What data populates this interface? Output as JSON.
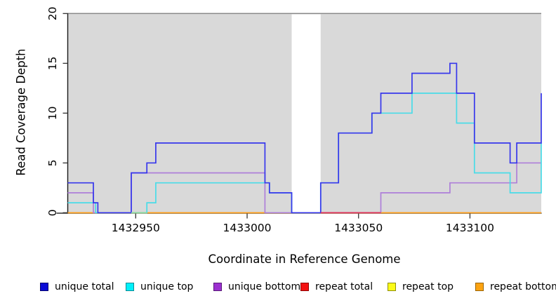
{
  "figure": {
    "bg": "#ffffff",
    "plot_bg": "#d9d9d9",
    "mask_fill": "#ffffff",
    "top_border_color": "#8a8a8a",
    "axis_color": "#1a1a1a",
    "tick_color": "#333333",
    "text_color": "#000000"
  },
  "chart_data": {
    "type": "line",
    "subtype": "step-coverage",
    "title": "",
    "xlabel": "Coordinate in Reference Genome",
    "ylabel": "Read Coverage Depth",
    "xlim": [
      1432919.5,
      1433132
    ],
    "ylim": [
      0,
      20
    ],
    "grid": "off",
    "legend_position": "bottom",
    "xticks": [
      {
        "label": "1432950",
        "value": 1432950
      },
      {
        "label": "1433000",
        "value": 1433000
      },
      {
        "label": "1433050",
        "value": 1433050
      },
      {
        "label": "1433100",
        "value": 1433100
      }
    ],
    "yticks": [
      {
        "label": "0",
        "value": 0
      },
      {
        "label": "5",
        "value": 5
      },
      {
        "label": "10",
        "value": 10
      },
      {
        "label": "15",
        "value": 15
      },
      {
        "label": "20",
        "value": 20
      }
    ],
    "masked_region": {
      "from": 1433020,
      "to": 1433033
    },
    "series": [
      {
        "name": "unique-total",
        "legend_label": "unique total",
        "line_color": "#3737ec",
        "legend_fill": "#0b0bd6",
        "legend_border": "#06066e",
        "draw_order": 5,
        "segments": [
          [
            [
              1432919.5,
              3
            ],
            [
              1432931,
              3
            ],
            [
              1432931,
              1
            ],
            [
              1432933,
              1
            ],
            [
              1432933,
              0
            ],
            [
              1432948,
              0
            ],
            [
              1432948,
              4
            ],
            [
              1432955,
              4
            ],
            [
              1432955,
              5
            ],
            [
              1432959,
              5
            ],
            [
              1432959,
              7
            ],
            [
              1433008,
              7
            ],
            [
              1433008,
              3
            ],
            [
              1433010,
              3
            ],
            [
              1433010,
              2
            ],
            [
              1433020,
              2
            ],
            [
              1433020,
              0
            ],
            [
              1433033,
              0
            ],
            [
              1433033,
              3
            ],
            [
              1433041,
              3
            ],
            [
              1433041,
              8
            ],
            [
              1433056,
              8
            ],
            [
              1433056,
              10
            ],
            [
              1433060,
              10
            ],
            [
              1433060,
              12
            ],
            [
              1433074,
              12
            ],
            [
              1433074,
              14
            ],
            [
              1433091,
              14
            ],
            [
              1433091,
              15
            ],
            [
              1433094,
              15
            ],
            [
              1433094,
              12
            ],
            [
              1433102,
              12
            ],
            [
              1433102,
              7
            ],
            [
              1433118,
              7
            ],
            [
              1433118,
              5
            ],
            [
              1433121,
              5
            ],
            [
              1433121,
              7
            ],
            [
              1433132,
              7
            ],
            [
              1433132,
              12
            ]
          ]
        ]
      },
      {
        "name": "unique-top",
        "legend_label": "unique top",
        "line_color": "#49dce8",
        "legend_fill": "#00f0fa",
        "legend_border": "#0d8a94",
        "draw_order": 4,
        "segments": [
          [
            [
              1432919.5,
              1
            ],
            [
              1432932,
              1
            ],
            [
              1432932,
              0
            ],
            [
              1432955,
              0
            ],
            [
              1432955,
              1
            ],
            [
              1432959,
              1
            ],
            [
              1432959,
              3
            ],
            [
              1433010,
              3
            ],
            [
              1433010,
              2
            ],
            [
              1433020,
              2
            ],
            [
              1433020,
              0
            ],
            [
              1433033,
              0
            ],
            [
              1433033,
              3
            ],
            [
              1433041,
              3
            ],
            [
              1433041,
              8
            ],
            [
              1433056,
              8
            ],
            [
              1433056,
              10
            ],
            [
              1433074,
              10
            ],
            [
              1433074,
              12
            ],
            [
              1433094,
              12
            ],
            [
              1433094,
              9
            ],
            [
              1433102,
              9
            ],
            [
              1433102,
              4
            ],
            [
              1433118,
              4
            ],
            [
              1433118,
              2
            ],
            [
              1433132,
              2
            ],
            [
              1433132,
              7
            ]
          ]
        ]
      },
      {
        "name": "unique-bottom",
        "legend_label": "unique bottom",
        "line_color": "#ae7fd9",
        "legend_fill": "#9c30d0",
        "legend_border": "#581a78",
        "draw_order": 3,
        "segments": [
          [
            [
              1432919.5,
              2
            ],
            [
              1432931,
              2
            ],
            [
              1432931,
              0
            ],
            [
              1432948,
              0
            ],
            [
              1432948,
              4
            ],
            [
              1433008,
              4
            ],
            [
              1433008,
              0
            ],
            [
              1433033,
              0
            ]
          ],
          [
            [
              1433060,
              0
            ],
            [
              1433060,
              2
            ],
            [
              1433091,
              2
            ],
            [
              1433091,
              3
            ],
            [
              1433121,
              3
            ],
            [
              1433121,
              5
            ],
            [
              1433132,
              5
            ]
          ]
        ]
      },
      {
        "name": "repeat-total",
        "legend_label": "repeat total",
        "line_color": "#ee1111",
        "legend_fill": "#f31111",
        "legend_border": "#8e0505",
        "draw_order": 0,
        "segments": [
          [
            [
              1432919.5,
              0
            ],
            [
              1433132,
              0
            ]
          ]
        ]
      },
      {
        "name": "repeat-top",
        "legend_label": "repeat top",
        "line_color": "#ffff00",
        "legend_fill": "#fbfb17",
        "legend_border": "#8f8f10",
        "draw_order": 1,
        "segments": [
          [
            [
              1432919.5,
              0
            ],
            [
              1433132,
              0
            ]
          ]
        ]
      },
      {
        "name": "repeat-bottom",
        "legend_label": "repeat bottom",
        "line_color": "#ff9e1b",
        "legend_fill": "#fca311",
        "legend_border": "#9a6507",
        "draw_order": 2,
        "segments": [
          [
            [
              1432919.5,
              0
            ],
            [
              1433132,
              0
            ]
          ]
        ]
      }
    ],
    "baseline_artifacts": [
      {
        "from": 1432948,
        "to": 1432955,
        "value": 0,
        "color": "#8bd8a2",
        "note": "greenish blend where unique top overlaps repeat bottom at zero"
      },
      {
        "from": 1433033,
        "to": 1433060,
        "value": 0,
        "color": "#dd3a60",
        "note": "crimson stretch where repeat total is visible at zero"
      }
    ]
  }
}
